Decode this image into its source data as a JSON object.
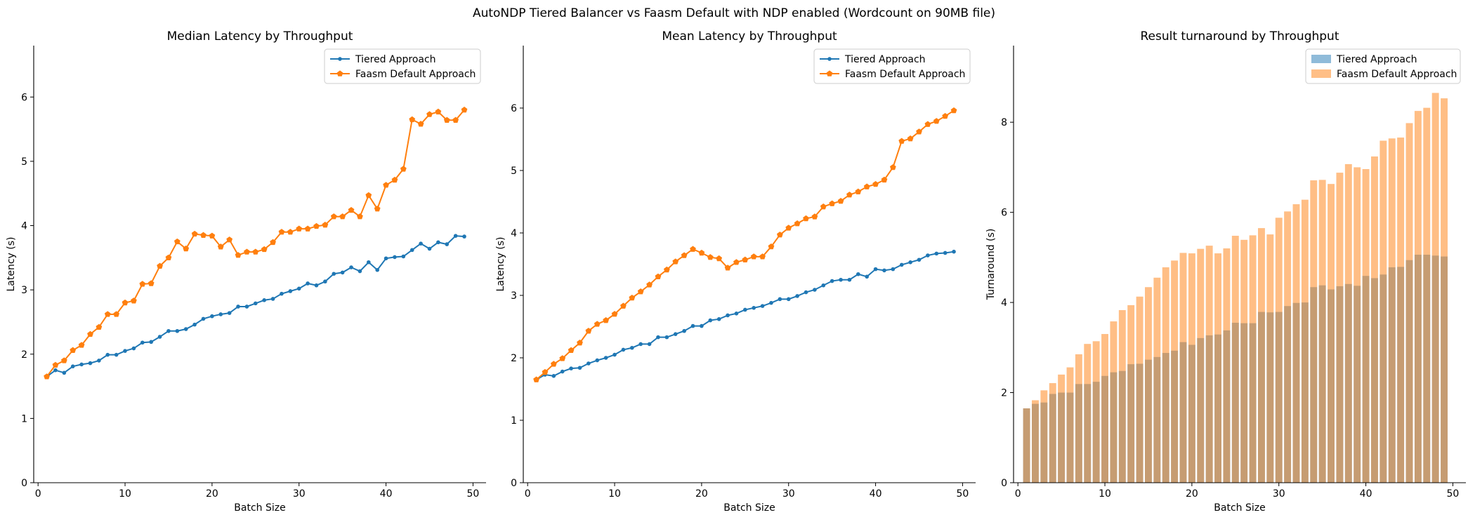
{
  "figure": {
    "suptitle": "AutoNDP Tiered Balancer vs Faasm Default with NDP enabled (Wordcount on 90MB file)"
  },
  "colors": {
    "tiered": "#1f77b4",
    "faasm": "#ff7f0e"
  },
  "chart_data": [
    {
      "type": "line",
      "title": "Median Latency by Throughput",
      "xlabel": "Batch Size",
      "ylabel": "Latency (s)",
      "xlim": [
        -0.5,
        51.5
      ],
      "ylim": [
        0,
        6.8
      ],
      "xticks": [
        0,
        10,
        20,
        30,
        40,
        50
      ],
      "yticks": [
        0,
        1,
        2,
        3,
        4,
        5,
        6
      ],
      "grid": false,
      "legend": "top-right",
      "x": [
        1,
        2,
        3,
        4,
        5,
        6,
        7,
        8,
        9,
        10,
        11,
        12,
        13,
        14,
        15,
        16,
        17,
        18,
        19,
        20,
        21,
        22,
        23,
        24,
        25,
        26,
        27,
        28,
        29,
        30,
        31,
        32,
        33,
        34,
        35,
        36,
        37,
        38,
        39,
        40,
        41,
        42,
        43,
        44,
        45,
        46,
        47,
        48,
        49
      ],
      "series": [
        {
          "name": "Tiered Approach",
          "color": "#1f77b4",
          "marker": "small-dot",
          "values": [
            1.65,
            1.75,
            1.71,
            1.81,
            1.84,
            1.86,
            1.9,
            1.99,
            1.99,
            2.05,
            2.09,
            2.18,
            2.19,
            2.27,
            2.36,
            2.36,
            2.39,
            2.46,
            2.55,
            2.59,
            2.62,
            2.64,
            2.74,
            2.74,
            2.79,
            2.84,
            2.86,
            2.94,
            2.98,
            3.02,
            3.1,
            3.07,
            3.13,
            3.25,
            3.27,
            3.35,
            3.29,
            3.43,
            3.31,
            3.49,
            3.51,
            3.52,
            3.62,
            3.72,
            3.64,
            3.74,
            3.71,
            3.84,
            3.83
          ]
        },
        {
          "name": "Faasm Default Approach",
          "color": "#ff7f0e",
          "marker": "pentagon",
          "values": [
            1.65,
            1.83,
            1.9,
            2.06,
            2.14,
            2.31,
            2.42,
            2.62,
            2.62,
            2.8,
            2.83,
            3.09,
            3.1,
            3.37,
            3.5,
            3.75,
            3.64,
            3.87,
            3.85,
            3.84,
            3.67,
            3.78,
            3.54,
            3.59,
            3.59,
            3.63,
            3.74,
            3.9,
            3.9,
            3.95,
            3.95,
            3.99,
            4.01,
            4.14,
            4.14,
            4.24,
            4.14,
            4.47,
            4.26,
            4.63,
            4.71,
            4.88,
            5.65,
            5.58,
            5.73,
            5.77,
            5.64,
            5.64,
            5.8
          ]
        }
      ]
    },
    {
      "type": "line",
      "title": "Mean Latency by Throughput",
      "xlabel": "Batch Size",
      "ylabel": "Latency (s)",
      "xlim": [
        -0.5,
        51.5
      ],
      "ylim": [
        0,
        7.0
      ],
      "xticks": [
        0,
        10,
        20,
        30,
        40,
        50
      ],
      "yticks": [
        0,
        1,
        2,
        3,
        4,
        5,
        6
      ],
      "grid": false,
      "legend": "top-right",
      "x": [
        1,
        2,
        3,
        4,
        5,
        6,
        7,
        8,
        9,
        10,
        11,
        12,
        13,
        14,
        15,
        16,
        17,
        18,
        19,
        20,
        21,
        22,
        23,
        24,
        25,
        26,
        27,
        28,
        29,
        30,
        31,
        32,
        33,
        34,
        35,
        36,
        37,
        38,
        39,
        40,
        41,
        42,
        43,
        44,
        45,
        46,
        47,
        48,
        49
      ],
      "series": [
        {
          "name": "Tiered Approach",
          "color": "#1f77b4",
          "marker": "small-dot",
          "values": [
            1.65,
            1.73,
            1.71,
            1.78,
            1.83,
            1.84,
            1.91,
            1.96,
            2.0,
            2.05,
            2.13,
            2.16,
            2.22,
            2.22,
            2.33,
            2.33,
            2.38,
            2.43,
            2.51,
            2.51,
            2.6,
            2.62,
            2.68,
            2.71,
            2.77,
            2.8,
            2.83,
            2.88,
            2.94,
            2.94,
            2.99,
            3.05,
            3.09,
            3.16,
            3.23,
            3.25,
            3.25,
            3.34,
            3.3,
            3.42,
            3.4,
            3.42,
            3.49,
            3.53,
            3.57,
            3.64,
            3.67,
            3.68,
            3.7
          ]
        },
        {
          "name": "Faasm Default Approach",
          "color": "#ff7f0e",
          "marker": "pentagon",
          "values": [
            1.65,
            1.77,
            1.9,
            1.99,
            2.12,
            2.24,
            2.43,
            2.54,
            2.6,
            2.7,
            2.83,
            2.96,
            3.06,
            3.17,
            3.3,
            3.41,
            3.54,
            3.64,
            3.74,
            3.68,
            3.61,
            3.59,
            3.44,
            3.53,
            3.57,
            3.62,
            3.62,
            3.78,
            3.97,
            4.08,
            4.15,
            4.23,
            4.26,
            4.42,
            4.47,
            4.51,
            4.61,
            4.66,
            4.74,
            4.78,
            4.85,
            5.05,
            5.47,
            5.51,
            5.62,
            5.74,
            5.79,
            5.87,
            5.96
          ]
        }
      ]
    },
    {
      "type": "bar",
      "title": "Result turnaround by Throughput",
      "xlabel": "Batch Size",
      "ylabel": "Turnaround (s)",
      "xlim": [
        -0.5,
        51.5
      ],
      "ylim": [
        0,
        9.7
      ],
      "xticks": [
        0,
        10,
        20,
        30,
        40,
        50
      ],
      "yticks": [
        0,
        2,
        4,
        6,
        8
      ],
      "grid": false,
      "legend": "top-right",
      "x": [
        1,
        2,
        3,
        4,
        5,
        6,
        7,
        8,
        9,
        10,
        11,
        12,
        13,
        14,
        15,
        16,
        17,
        18,
        19,
        20,
        21,
        22,
        23,
        24,
        25,
        26,
        27,
        28,
        29,
        30,
        31,
        32,
        33,
        34,
        35,
        36,
        37,
        38,
        39,
        40,
        41,
        42,
        43,
        44,
        45,
        46,
        47,
        48,
        49
      ],
      "series": [
        {
          "name": "Tiered Approach",
          "color": "#1f77b4",
          "opacity": 0.5,
          "values": [
            1.65,
            1.75,
            1.78,
            1.97,
            2.0,
            2.0,
            2.19,
            2.19,
            2.24,
            2.37,
            2.45,
            2.48,
            2.63,
            2.64,
            2.73,
            2.79,
            2.88,
            2.93,
            3.12,
            3.06,
            3.21,
            3.27,
            3.29,
            3.38,
            3.55,
            3.54,
            3.54,
            3.79,
            3.78,
            3.79,
            3.92,
            3.99,
            4.0,
            4.34,
            4.38,
            4.29,
            4.36,
            4.41,
            4.37,
            4.59,
            4.54,
            4.62,
            4.78,
            4.79,
            4.94,
            5.06,
            5.06,
            5.04,
            5.02
          ]
        },
        {
          "name": "Faasm Default Approach",
          "color": "#ff7f0e",
          "opacity": 0.5,
          "values": [
            1.65,
            1.83,
            2.05,
            2.21,
            2.4,
            2.56,
            2.85,
            3.08,
            3.14,
            3.3,
            3.58,
            3.83,
            3.94,
            4.13,
            4.34,
            4.55,
            4.78,
            4.93,
            5.1,
            5.09,
            5.19,
            5.26,
            5.09,
            5.2,
            5.48,
            5.39,
            5.49,
            5.65,
            5.51,
            5.88,
            6.02,
            6.18,
            6.28,
            6.71,
            6.72,
            6.63,
            6.88,
            7.07,
            7.0,
            6.96,
            7.24,
            7.59,
            7.64,
            7.66,
            7.98,
            8.25,
            8.32,
            8.65,
            8.53
          ]
        }
      ]
    }
  ]
}
